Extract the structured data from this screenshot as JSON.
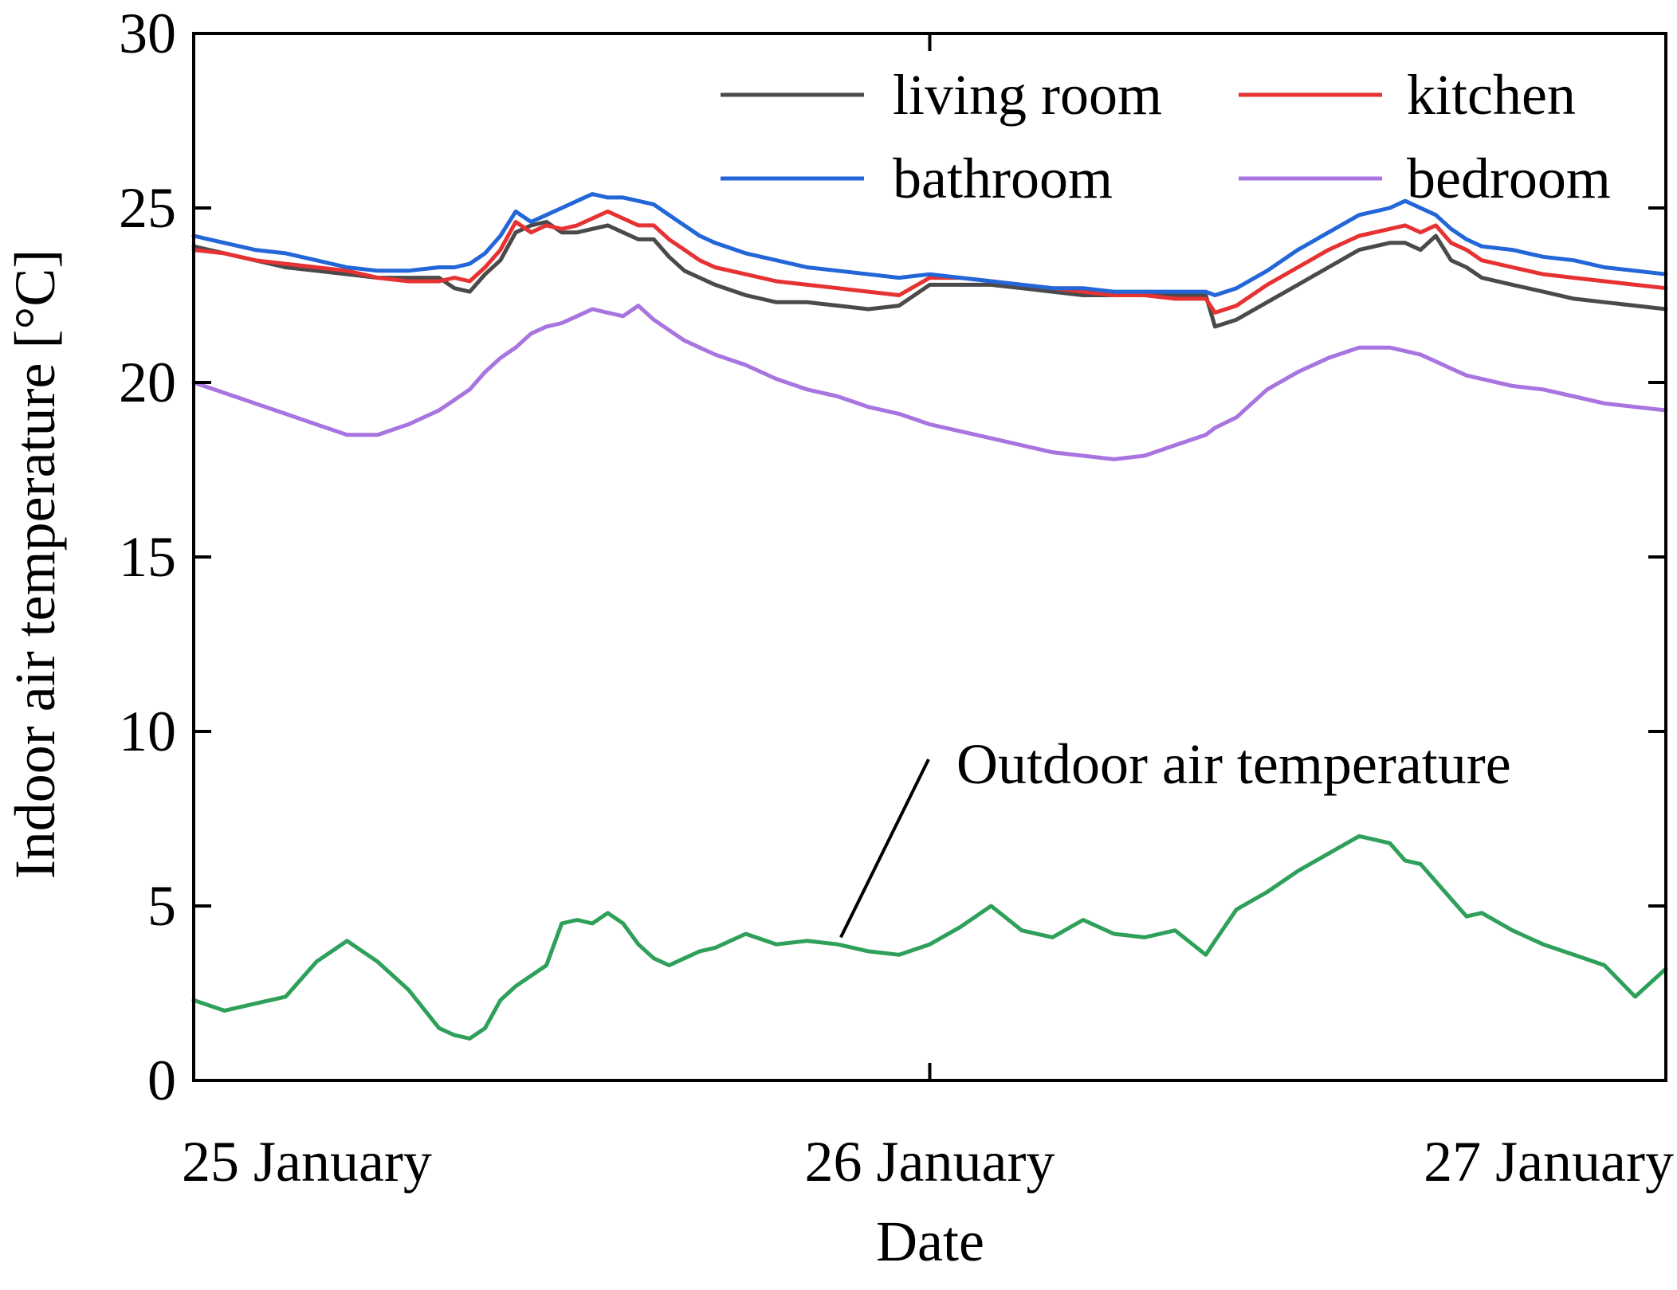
{
  "chart_data": {
    "type": "line",
    "xlabel": "Date",
    "ylabel": "Indoor air temperature [°C]",
    "ylim": [
      0,
      30
    ],
    "xlim": [
      0,
      48
    ],
    "y_ticks": [
      0,
      5,
      10,
      15,
      20,
      25,
      30
    ],
    "x_ticks": [
      {
        "value": 0,
        "label": "25 January"
      },
      {
        "value": 24,
        "label": "26 January"
      },
      {
        "value": 48,
        "label": "27 January"
      }
    ],
    "legend_position": "top-right",
    "annotation": {
      "text": "Outdoor air temperature",
      "series": "outdoor",
      "points_to": [
        21.1,
        4.1
      ]
    },
    "colors": {
      "living_room": "#4a4a4a",
      "kitchen": "#e63232",
      "bathroom": "#2266d8",
      "bedroom": "#a874e0",
      "outdoor": "#2ea05a",
      "axis": "#000000"
    },
    "x": [
      0,
      1,
      2,
      3,
      4,
      5,
      6,
      7,
      8,
      8.5,
      9,
      9.5,
      10,
      10.5,
      11,
      11.5,
      12,
      12.5,
      13,
      13.5,
      14,
      14.5,
      15,
      15.5,
      16,
      16.5,
      17,
      18,
      19,
      20,
      21,
      22,
      23,
      24,
      25,
      26,
      27,
      28,
      29,
      30,
      31,
      32,
      33,
      33.3,
      34,
      35,
      36,
      37,
      38,
      39,
      39.5,
      40,
      40.5,
      41,
      41.5,
      42,
      43,
      44,
      45,
      46,
      47,
      48
    ],
    "series": [
      {
        "key": "living_room",
        "name": "living room",
        "values": [
          23.9,
          23.7,
          23.5,
          23.3,
          23.2,
          23.1,
          23.0,
          23.0,
          23.0,
          22.7,
          22.6,
          23.1,
          23.5,
          24.3,
          24.5,
          24.6,
          24.3,
          24.3,
          24.4,
          24.5,
          24.3,
          24.1,
          24.1,
          23.6,
          23.2,
          23.0,
          22.8,
          22.5,
          22.3,
          22.3,
          22.2,
          22.1,
          22.2,
          22.8,
          22.8,
          22.8,
          22.7,
          22.6,
          22.5,
          22.5,
          22.5,
          22.5,
          22.5,
          21.6,
          21.8,
          22.3,
          22.8,
          23.3,
          23.8,
          24.0,
          24.0,
          23.8,
          24.2,
          23.5,
          23.3,
          23.0,
          22.8,
          22.6,
          22.4,
          22.3,
          22.2,
          22.1
        ]
      },
      {
        "key": "kitchen",
        "name": "kitchen",
        "values": [
          23.8,
          23.7,
          23.5,
          23.4,
          23.3,
          23.2,
          23.0,
          22.9,
          22.9,
          23.0,
          22.9,
          23.3,
          23.8,
          24.6,
          24.3,
          24.5,
          24.4,
          24.5,
          24.7,
          24.9,
          24.7,
          24.5,
          24.5,
          24.1,
          23.8,
          23.5,
          23.3,
          23.1,
          22.9,
          22.8,
          22.7,
          22.6,
          22.5,
          23.0,
          23.0,
          22.9,
          22.8,
          22.7,
          22.6,
          22.5,
          22.5,
          22.4,
          22.4,
          22.0,
          22.2,
          22.8,
          23.3,
          23.8,
          24.2,
          24.4,
          24.5,
          24.3,
          24.5,
          24.0,
          23.8,
          23.5,
          23.3,
          23.1,
          23.0,
          22.9,
          22.8,
          22.7
        ]
      },
      {
        "key": "bathroom",
        "name": "bathroom",
        "values": [
          24.2,
          24.0,
          23.8,
          23.7,
          23.5,
          23.3,
          23.2,
          23.2,
          23.3,
          23.3,
          23.4,
          23.7,
          24.2,
          24.9,
          24.6,
          24.8,
          25.0,
          25.2,
          25.4,
          25.3,
          25.3,
          25.2,
          25.1,
          24.8,
          24.5,
          24.2,
          24.0,
          23.7,
          23.5,
          23.3,
          23.2,
          23.1,
          23.0,
          23.1,
          23.0,
          22.9,
          22.8,
          22.7,
          22.7,
          22.6,
          22.6,
          22.6,
          22.6,
          22.5,
          22.7,
          23.2,
          23.8,
          24.3,
          24.8,
          25.0,
          25.2,
          25.0,
          24.8,
          24.4,
          24.1,
          23.9,
          23.8,
          23.6,
          23.5,
          23.3,
          23.2,
          23.1
        ]
      },
      {
        "key": "bedroom",
        "name": "bedroom",
        "values": [
          20.0,
          19.7,
          19.4,
          19.1,
          18.8,
          18.5,
          18.5,
          18.8,
          19.2,
          19.5,
          19.8,
          20.3,
          20.7,
          21.0,
          21.4,
          21.6,
          21.7,
          21.9,
          22.1,
          22.0,
          21.9,
          22.2,
          21.8,
          21.5,
          21.2,
          21.0,
          20.8,
          20.5,
          20.1,
          19.8,
          19.6,
          19.3,
          19.1,
          18.8,
          18.6,
          18.4,
          18.2,
          18.0,
          17.9,
          17.8,
          17.9,
          18.2,
          18.5,
          18.7,
          19.0,
          19.8,
          20.3,
          20.7,
          21.0,
          21.0,
          20.9,
          20.8,
          20.6,
          20.4,
          20.2,
          20.1,
          19.9,
          19.8,
          19.6,
          19.4,
          19.3,
          19.2
        ]
      },
      {
        "key": "outdoor",
        "name": "Outdoor air temperature",
        "values": [
          2.3,
          2.0,
          2.2,
          2.4,
          3.4,
          4.0,
          3.4,
          2.6,
          1.5,
          1.3,
          1.2,
          1.5,
          2.3,
          2.7,
          3.0,
          3.3,
          4.5,
          4.6,
          4.5,
          4.8,
          4.5,
          3.9,
          3.5,
          3.3,
          3.5,
          3.7,
          3.8,
          4.2,
          3.9,
          4.0,
          3.9,
          3.7,
          3.6,
          3.9,
          4.4,
          5.0,
          4.3,
          4.1,
          4.6,
          4.2,
          4.1,
          4.3,
          3.6,
          4.0,
          4.9,
          5.4,
          6.0,
          6.5,
          7.0,
          6.8,
          6.3,
          6.2,
          5.7,
          5.2,
          4.7,
          4.8,
          4.3,
          3.9,
          3.6,
          3.3,
          2.4,
          3.2
        ]
      }
    ]
  }
}
